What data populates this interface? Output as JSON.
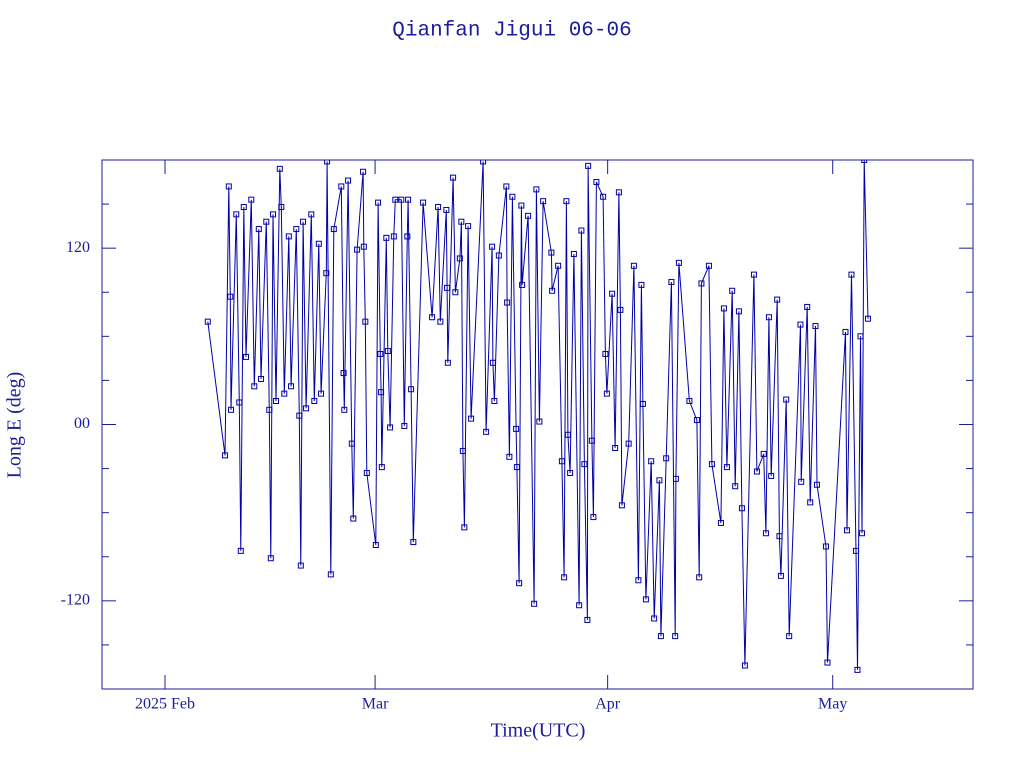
{
  "chart_data": {
    "type": "line",
    "title": "Qianfan Jigui 06-06",
    "x_label": "Time(UTC)",
    "y_label": "Long E (deg)",
    "color": "#0000a8",
    "xlim": [
      22.6,
      138.7
    ],
    "xticks": [
      {
        "value": 31,
        "label": "2025 Feb"
      },
      {
        "value": 59,
        "label": "Mar"
      },
      {
        "value": 90,
        "label": "Apr"
      },
      {
        "value": 120,
        "label": "May"
      }
    ],
    "ylim": [
      -180,
      180
    ],
    "yticks": [
      -120,
      {
        "value": 0,
        "label": "00"
      },
      120
    ],
    "y_minor_ticks": [
      -150,
      -90,
      -60,
      -30,
      30,
      60,
      90,
      150
    ],
    "x": [
      36.7,
      39.0,
      39.5,
      39.7,
      39.8,
      40.5,
      40.9,
      41.1,
      41.5,
      41.8,
      42.5,
      42.9,
      43.5,
      43.8,
      44.5,
      44.9,
      45.1,
      45.4,
      45.8,
      46.3,
      46.5,
      46.9,
      47.5,
      47.8,
      48.5,
      48.9,
      49.1,
      49.4,
      49.8,
      50.5,
      50.9,
      51.5,
      51.8,
      52.5,
      52.6,
      53.1,
      53.5,
      54.5,
      54.8,
      54.9,
      55.4,
      55.9,
      56.1,
      56.6,
      57.4,
      57.5,
      57.7,
      57.9,
      59.1,
      59.4,
      59.7,
      59.8,
      59.9,
      60.5,
      60.7,
      61.0,
      61.5,
      61.7,
      62.5,
      62.9,
      63.3,
      63.4,
      63.8,
      64.1,
      65.4,
      66.6,
      67.4,
      67.7,
      68.5,
      68.6,
      68.7,
      69.4,
      69.7,
      70.3,
      70.5,
      70.7,
      70.9,
      71.4,
      71.8,
      73.4,
      73.8,
      74.6,
      74.7,
      74.9,
      75.5,
      76.5,
      76.6,
      76.9,
      77.3,
      77.8,
      77.9,
      78.2,
      78.5,
      78.6,
      79.4,
      80.2,
      80.5,
      80.9,
      81.4,
      82.5,
      82.6,
      83.4,
      83.9,
      84.2,
      84.5,
      84.7,
      85.0,
      85.5,
      86.2,
      86.5,
      86.9,
      87.3,
      87.4,
      87.9,
      88.1,
      88.5,
      89.4,
      89.7,
      89.9,
      90.6,
      91.0,
      91.5,
      91.7,
      91.9,
      92.8,
      93.5,
      94.1,
      94.5,
      94.7,
      95.1,
      95.8,
      96.2,
      96.9,
      97.1,
      97.8,
      98.5,
      99.0,
      99.1,
      99.5,
      100.9,
      101.9,
      102.2,
      102.5,
      103.5,
      103.9,
      105.1,
      105.5,
      105.9,
      106.6,
      107.0,
      107.5,
      107.9,
      108.3,
      109.5,
      109.9,
      110.8,
      111.1,
      111.5,
      111.8,
      112.6,
      112.9,
      113.1,
      113.8,
      114.2,
      115.7,
      115.8,
      116.6,
      117.0,
      117.7,
      117.9,
      119.1,
      119.3,
      121.7,
      121.9,
      122.5,
      123.1,
      123.3,
      123.7,
      123.9,
      124.2,
      124.7
    ],
    "values": [
      70,
      -21,
      162,
      87,
      10,
      143,
      15,
      -86,
      148,
      46,
      153,
      26,
      133,
      31,
      138,
      10,
      -91,
      143,
      16,
      174,
      148,
      21,
      128,
      26,
      133,
      6,
      -96,
      138,
      11,
      143,
      16,
      123,
      21,
      103,
      179,
      -102,
      133,
      162,
      35,
      10,
      166,
      -13,
      -64,
      119,
      172,
      121,
      70,
      -33,
      -82,
      151,
      48,
      22,
      -29,
      127,
      50,
      -2,
      128,
      153,
      153,
      -1,
      128,
      153,
      24,
      -80,
      151,
      73,
      148,
      70,
      146,
      93,
      42,
      168,
      90,
      113,
      138,
      -18,
      -70,
      135,
      4,
      179,
      -5,
      121,
      42,
      16,
      115,
      162,
      83,
      -22,
      155,
      -3,
      -29,
      -108,
      149,
      95,
      142,
      -122,
      160,
      2,
      152,
      117,
      91,
      108,
      -25,
      -104,
      152,
      -7,
      -33,
      116,
      -123,
      132,
      -27,
      -133,
      176,
      -11,
      -63,
      165,
      155,
      48,
      21,
      89,
      -16,
      158,
      78,
      -55,
      -13,
      108,
      -106,
      95,
      14,
      -119,
      -25,
      -132,
      -38,
      -144,
      -23,
      97,
      -144,
      -37,
      110,
      16,
      3,
      -104,
      96,
      108,
      -27,
      -67,
      79,
      -29,
      91,
      -42,
      77,
      -57,
      -164,
      102,
      -32,
      -20,
      -74,
      73,
      -35,
      85,
      -76,
      -103,
      17,
      -144,
      68,
      -39,
      80,
      -53,
      67,
      -41,
      -83,
      -162,
      63,
      -72,
      102,
      -86,
      -167,
      60,
      -74,
      180,
      72
    ]
  }
}
